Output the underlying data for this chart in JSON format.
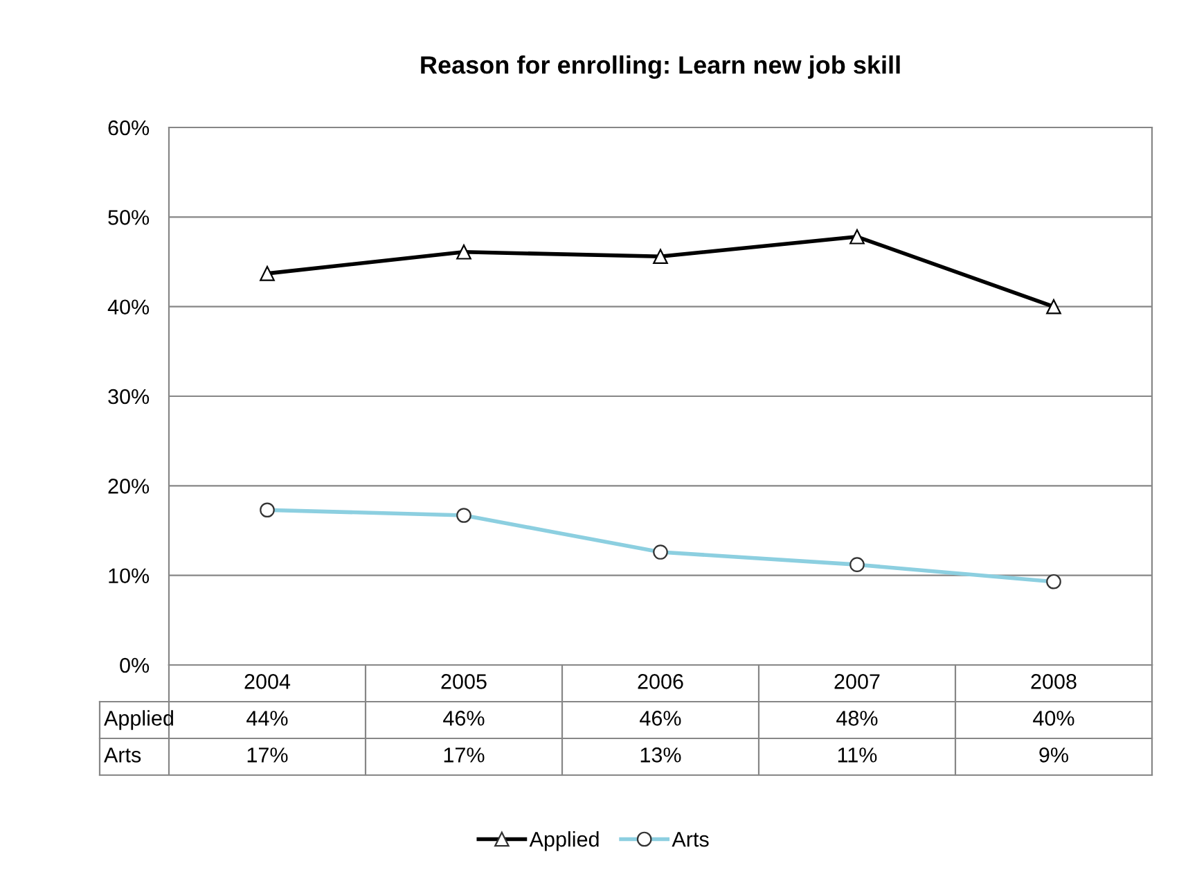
{
  "chart_data": {
    "type": "line",
    "title": "Reason for enrolling: Learn new job skill",
    "categories": [
      "2004",
      "2005",
      "2006",
      "2007",
      "2008"
    ],
    "series": [
      {
        "name": "Applied",
        "color": "#000000",
        "marker": "triangle",
        "values": [
          43.7,
          46.1,
          45.6,
          47.8,
          40.0
        ],
        "value_labels": [
          "44%",
          "46%",
          "46%",
          "48%",
          "40%"
        ]
      },
      {
        "name": "Arts",
        "color": "#8ccfe0",
        "marker": "circle",
        "values": [
          17.3,
          16.7,
          12.6,
          11.2,
          9.3
        ],
        "value_labels": [
          "17%",
          "17%",
          "13%",
          "11%",
          "9%"
        ]
      }
    ],
    "ylim": [
      0,
      60
    ],
    "yticks": [
      {
        "value": 0,
        "label": "0%"
      },
      {
        "value": 10,
        "label": "10%"
      },
      {
        "value": 20,
        "label": "20%"
      },
      {
        "value": 30,
        "label": "30%"
      },
      {
        "value": 40,
        "label": "40%"
      },
      {
        "value": 50,
        "label": "50%"
      },
      {
        "value": 60,
        "label": "60%"
      }
    ],
    "grid": "y",
    "legend": "bottom",
    "line_style": "solid"
  }
}
